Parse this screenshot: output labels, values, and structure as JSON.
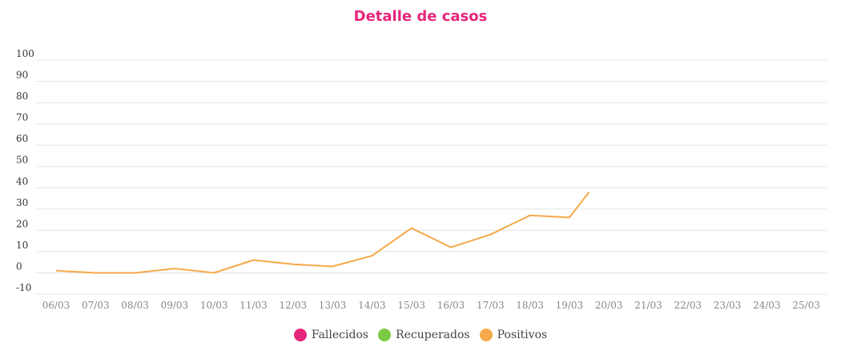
{
  "chart_data": {
    "type": "line",
    "title": "Detalle de casos",
    "xlabel": "",
    "ylabel": "",
    "categories": [
      "06/03",
      "07/03",
      "08/03",
      "09/03",
      "10/03",
      "11/03",
      "12/03",
      "13/03",
      "14/03",
      "15/03",
      "16/03",
      "17/03",
      "18/03",
      "19/03",
      "20/03",
      "21/03",
      "22/03",
      "23/03",
      "24/03",
      "25/03"
    ],
    "y_ticks": [
      -10,
      0,
      10,
      20,
      30,
      40,
      50,
      60,
      70,
      80,
      90,
      100
    ],
    "ylim": [
      -10,
      100
    ],
    "grid": true,
    "legend_placement": "bottom-center",
    "series": [
      {
        "name": "Fallecidos",
        "color": "#e6267b",
        "x": [],
        "values": []
      },
      {
        "name": "Recuperados",
        "color": "#7ac943",
        "x": [],
        "values": []
      },
      {
        "name": "Positivos",
        "color": "#f5a94a",
        "x": [
          "06/03",
          "07/03",
          "08/03",
          "09/03",
          "10/03",
          "11/03",
          "12/03",
          "13/03",
          "14/03",
          "15/03",
          "16/03",
          "17/03",
          "18/03",
          "19/03",
          "19/03–20/03"
        ],
        "values": [
          1,
          0,
          0,
          2,
          0,
          6,
          4,
          3,
          8,
          21,
          12,
          18,
          27,
          26,
          38
        ]
      }
    ]
  }
}
